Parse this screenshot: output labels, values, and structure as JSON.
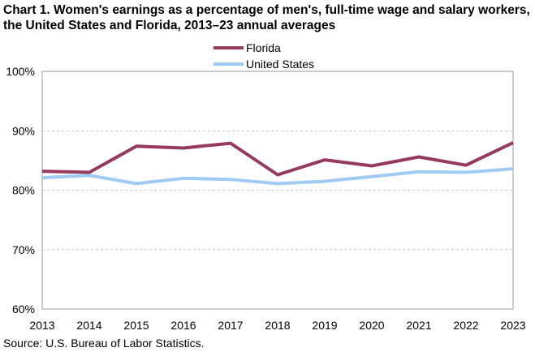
{
  "chart_data": {
    "type": "line",
    "title": "Chart 1. Women's earnings as a percentage of men's, full-time wage and salary workers, the United States and Florida, 2013–23 annual averages",
    "xlabel": "",
    "ylabel": "",
    "x": [
      "2013",
      "2014",
      "2015",
      "2016",
      "2017",
      "2018",
      "2019",
      "2020",
      "2021",
      "2022",
      "2023"
    ],
    "ylim": [
      60,
      100
    ],
    "yticks": [
      60,
      70,
      80,
      90,
      100
    ],
    "ytick_labels": [
      "60%",
      "70%",
      "80%",
      "90%",
      "100%"
    ],
    "grid": "horizontal dashed",
    "legend_position": "top-center",
    "series": [
      {
        "name": "Florida",
        "color": "#953a5e",
        "values": [
          83.2,
          83.0,
          87.4,
          87.1,
          87.9,
          82.6,
          85.1,
          84.1,
          85.6,
          84.2,
          88.0
        ]
      },
      {
        "name": "United States",
        "color": "#9fcaf4",
        "values": [
          82.1,
          82.5,
          81.1,
          82.0,
          81.8,
          81.1,
          81.5,
          82.3,
          83.1,
          83.0,
          83.6
        ]
      }
    ]
  },
  "source": "Source: U.S. Bureau of Labor Statistics."
}
